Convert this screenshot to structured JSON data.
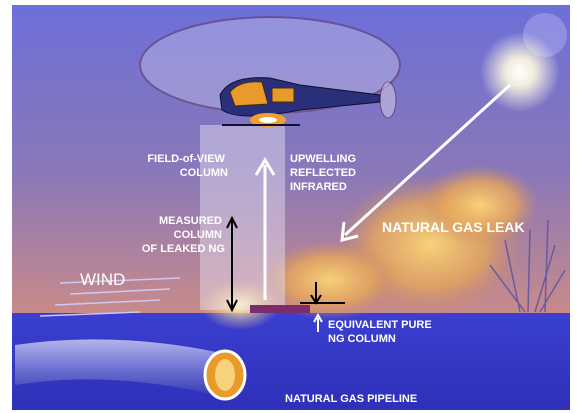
{
  "labels": {
    "field_of_view": [
      "FIELD-of-VIEW",
      "COLUMN"
    ],
    "upwelling": [
      "UPWELLING",
      "REFLECTED",
      "INFRARED"
    ],
    "measured": [
      "MEASURED",
      "COLUMN",
      "OF LEAKED NG"
    ],
    "leak": "NATURAL GAS LEAK",
    "wind": "WIND",
    "equivalent": [
      "EQUIVALENT PURE",
      "NG COLUMN"
    ],
    "pipeline": "NATURAL GAS PIPELINE"
  }
}
